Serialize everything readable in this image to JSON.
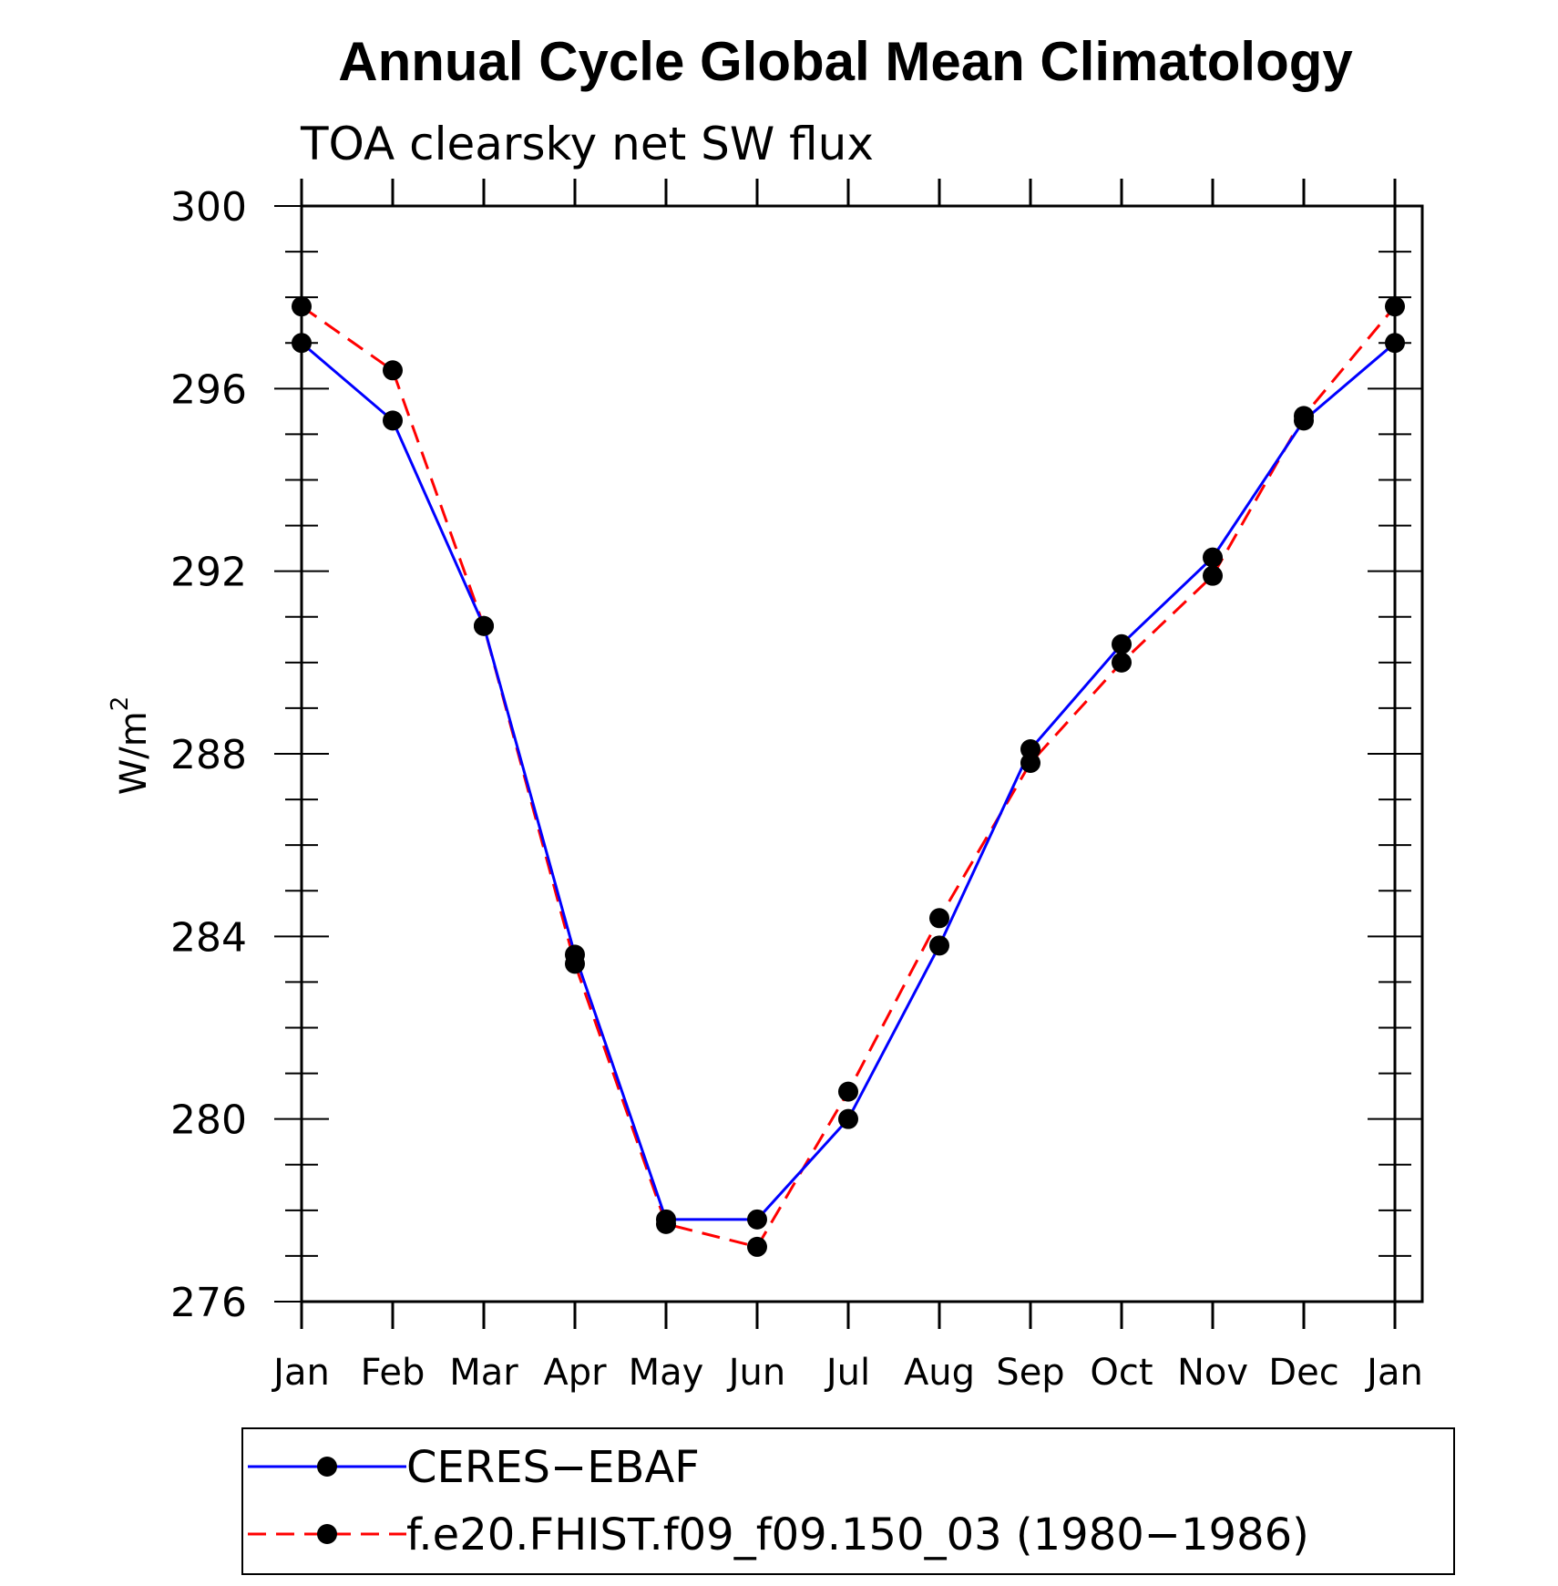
{
  "chart_data": {
    "type": "line",
    "title": "Annual Cycle Global Mean Climatology",
    "subtitle": "TOA clearsky net SW flux",
    "ylabel": "W/m",
    "ylabel_superscript": "2",
    "categories": [
      "Jan",
      "Feb",
      "Mar",
      "Apr",
      "May",
      "Jun",
      "Jul",
      "Aug",
      "Sep",
      "Oct",
      "Nov",
      "Dec",
      "Jan"
    ],
    "ylim": [
      276,
      300
    ],
    "yticks": [
      276,
      280,
      284,
      288,
      292,
      296,
      300
    ],
    "yminor_step": 1,
    "legend_position": "bottom",
    "series": [
      {
        "name": "CERES−EBAF",
        "color": "#0000ff",
        "dash": "solid",
        "values": [
          297.0,
          295.3,
          290.8,
          283.6,
          277.8,
          277.8,
          280.0,
          283.8,
          288.1,
          290.4,
          292.3,
          295.3,
          297.0
        ]
      },
      {
        "name": "f.e20.FHIST.f09_f09.150_03 (1980−1986)",
        "color": "#ff0000",
        "dash": "dashed",
        "values": [
          297.8,
          296.4,
          290.8,
          283.4,
          277.7,
          277.2,
          280.6,
          284.4,
          287.8,
          290.0,
          291.9,
          295.4,
          297.8
        ]
      }
    ]
  }
}
